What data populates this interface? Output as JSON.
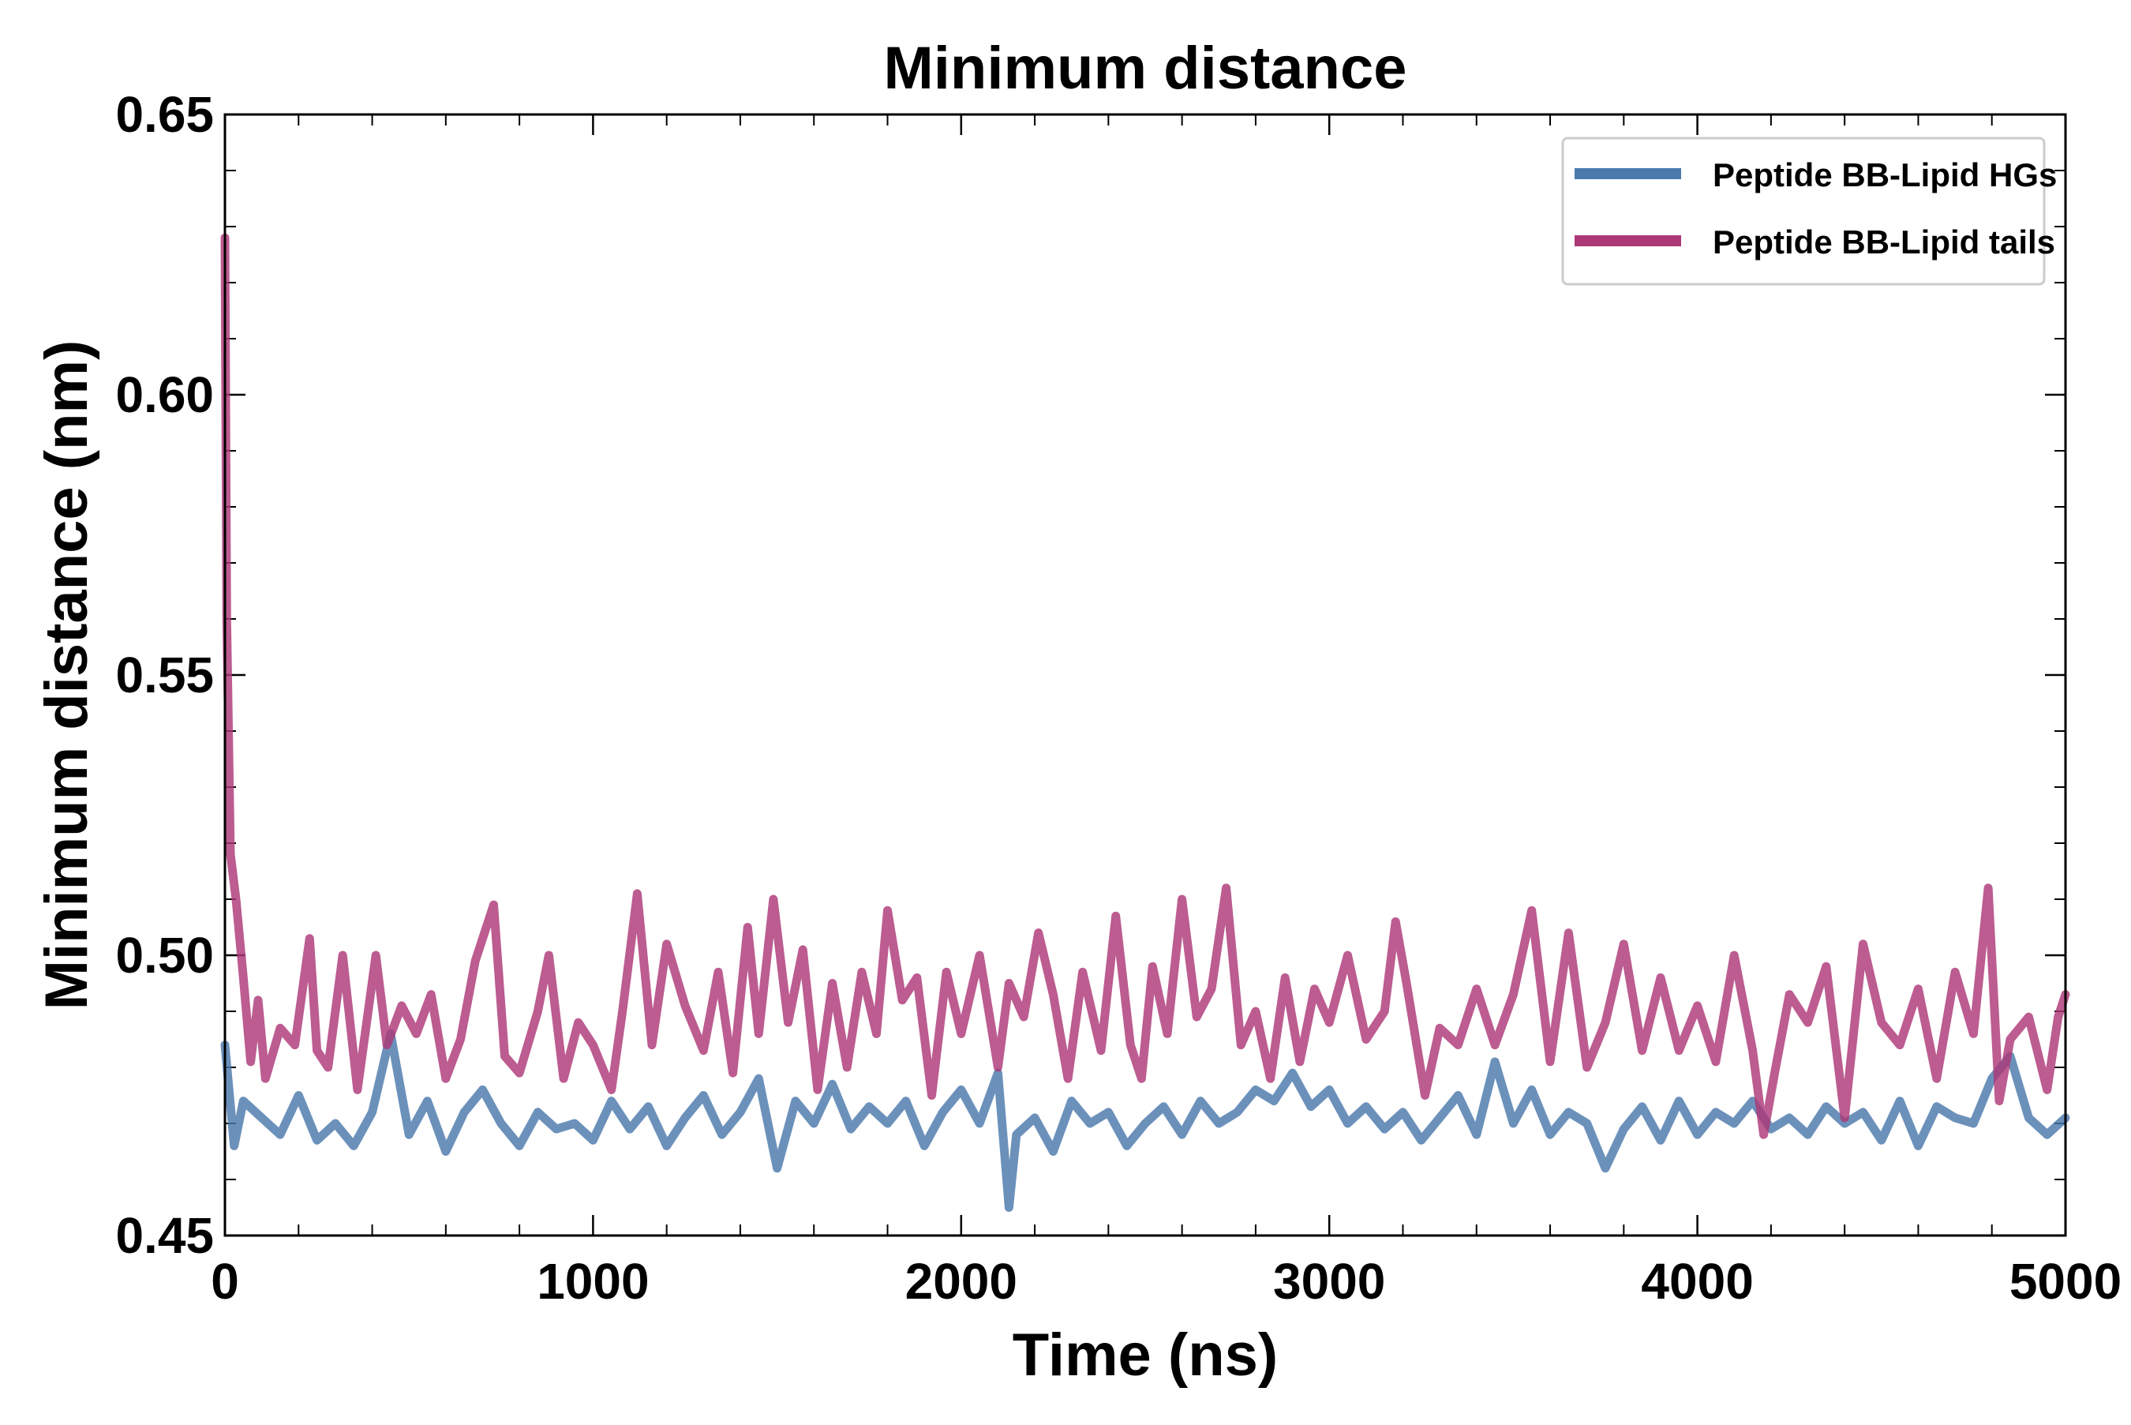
{
  "chart_data": {
    "type": "line",
    "title": "Minimum distance",
    "xlabel": "Time (ns)",
    "ylabel": "Minimum distance (nm)",
    "xlim": [
      0,
      5000
    ],
    "ylim": [
      0.45,
      0.65
    ],
    "x_ticks": [
      0,
      1000,
      2000,
      3000,
      4000,
      5000
    ],
    "x_tick_labels": [
      "0",
      "1000",
      "2000",
      "3000",
      "4000",
      "5000"
    ],
    "y_ticks": [
      0.45,
      0.5,
      0.55,
      0.6,
      0.65
    ],
    "y_tick_labels": [
      "0.45",
      "0.50",
      "0.55",
      "0.60",
      "0.65"
    ],
    "grid": false,
    "legend_position": "top-right",
    "series": [
      {
        "name": "Peptide BB-Lipid HGs",
        "color": "#4a79ac",
        "x": [
          0,
          25,
          50,
          100,
          150,
          200,
          250,
          300,
          350,
          400,
          450,
          500,
          550,
          600,
          650,
          700,
          750,
          800,
          850,
          900,
          950,
          1000,
          1050,
          1100,
          1150,
          1200,
          1250,
          1300,
          1350,
          1400,
          1450,
          1500,
          1550,
          1600,
          1650,
          1700,
          1750,
          1800,
          1850,
          1900,
          1950,
          2000,
          2050,
          2100,
          2130,
          2150,
          2200,
          2250,
          2300,
          2350,
          2400,
          2450,
          2500,
          2550,
          2600,
          2650,
          2700,
          2750,
          2800,
          2850,
          2900,
          2950,
          3000,
          3050,
          3100,
          3150,
          3200,
          3250,
          3300,
          3350,
          3400,
          3450,
          3500,
          3550,
          3600,
          3650,
          3700,
          3750,
          3800,
          3850,
          3900,
          3950,
          4000,
          4050,
          4100,
          4150,
          4200,
          4250,
          4300,
          4350,
          4400,
          4450,
          4500,
          4550,
          4600,
          4650,
          4700,
          4750,
          4800,
          4850,
          4900,
          4950,
          5000
        ],
        "y": [
          0.484,
          0.466,
          0.474,
          0.471,
          0.468,
          0.475,
          0.467,
          0.47,
          0.466,
          0.472,
          0.486,
          0.468,
          0.474,
          0.465,
          0.472,
          0.476,
          0.47,
          0.466,
          0.472,
          0.469,
          0.47,
          0.467,
          0.474,
          0.469,
          0.473,
          0.466,
          0.471,
          0.475,
          0.468,
          0.472,
          0.478,
          0.462,
          0.474,
          0.47,
          0.477,
          0.469,
          0.473,
          0.47,
          0.474,
          0.466,
          0.472,
          0.476,
          0.47,
          0.479,
          0.455,
          0.468,
          0.471,
          0.465,
          0.474,
          0.47,
          0.472,
          0.466,
          0.47,
          0.473,
          0.468,
          0.474,
          0.47,
          0.472,
          0.476,
          0.474,
          0.479,
          0.473,
          0.476,
          0.47,
          0.473,
          0.469,
          0.472,
          0.467,
          0.471,
          0.475,
          0.468,
          0.481,
          0.47,
          0.476,
          0.468,
          0.472,
          0.47,
          0.462,
          0.469,
          0.473,
          0.467,
          0.474,
          0.468,
          0.472,
          0.47,
          0.474,
          0.469,
          0.471,
          0.468,
          0.473,
          0.47,
          0.472,
          0.467,
          0.474,
          0.466,
          0.473,
          0.471,
          0.47,
          0.478,
          0.482,
          0.471,
          0.468,
          0.471
        ]
      },
      {
        "name": "Peptide BB-Lipid tails",
        "color": "#ad3878",
        "x": [
          0,
          5,
          15,
          30,
          50,
          70,
          90,
          110,
          150,
          190,
          230,
          250,
          280,
          320,
          360,
          410,
          440,
          480,
          520,
          560,
          600,
          640,
          680,
          730,
          760,
          800,
          850,
          880,
          920,
          960,
          1000,
          1050,
          1080,
          1120,
          1160,
          1200,
          1250,
          1300,
          1340,
          1380,
          1420,
          1450,
          1490,
          1530,
          1570,
          1610,
          1650,
          1690,
          1730,
          1770,
          1800,
          1840,
          1880,
          1920,
          1960,
          2000,
          2050,
          2100,
          2130,
          2170,
          2210,
          2250,
          2290,
          2330,
          2380,
          2420,
          2460,
          2490,
          2520,
          2560,
          2600,
          2640,
          2680,
          2720,
          2760,
          2800,
          2840,
          2880,
          2920,
          2960,
          3000,
          3050,
          3100,
          3150,
          3180,
          3210,
          3260,
          3300,
          3350,
          3400,
          3450,
          3500,
          3550,
          3600,
          3650,
          3700,
          3750,
          3800,
          3850,
          3900,
          3950,
          4000,
          4050,
          4100,
          4150,
          4180,
          4210,
          4250,
          4300,
          4350,
          4400,
          4450,
          4500,
          4550,
          4600,
          4650,
          4700,
          4750,
          4790,
          4820,
          4850,
          4900,
          4950,
          4980,
          5000
        ],
        "y": [
          0.628,
          0.56,
          0.518,
          0.51,
          0.496,
          0.481,
          0.492,
          0.478,
          0.487,
          0.484,
          0.503,
          0.483,
          0.48,
          0.5,
          0.476,
          0.5,
          0.484,
          0.491,
          0.486,
          0.493,
          0.478,
          0.485,
          0.499,
          0.509,
          0.482,
          0.479,
          0.49,
          0.5,
          0.478,
          0.488,
          0.484,
          0.476,
          0.49,
          0.511,
          0.484,
          0.502,
          0.491,
          0.483,
          0.497,
          0.479,
          0.505,
          0.486,
          0.51,
          0.488,
          0.501,
          0.476,
          0.495,
          0.48,
          0.497,
          0.486,
          0.508,
          0.492,
          0.496,
          0.475,
          0.497,
          0.486,
          0.5,
          0.48,
          0.495,
          0.489,
          0.504,
          0.493,
          0.478,
          0.497,
          0.483,
          0.507,
          0.484,
          0.478,
          0.498,
          0.486,
          0.51,
          0.489,
          0.494,
          0.512,
          0.484,
          0.49,
          0.478,
          0.496,
          0.481,
          0.494,
          0.488,
          0.5,
          0.485,
          0.49,
          0.506,
          0.495,
          0.475,
          0.487,
          0.484,
          0.494,
          0.484,
          0.493,
          0.508,
          0.481,
          0.504,
          0.48,
          0.488,
          0.502,
          0.483,
          0.496,
          0.483,
          0.491,
          0.481,
          0.5,
          0.483,
          0.468,
          0.479,
          0.493,
          0.488,
          0.498,
          0.471,
          0.502,
          0.488,
          0.484,
          0.494,
          0.478,
          0.497,
          0.486,
          0.512,
          0.474,
          0.485,
          0.489,
          0.476,
          0.489,
          0.493
        ]
      }
    ]
  }
}
